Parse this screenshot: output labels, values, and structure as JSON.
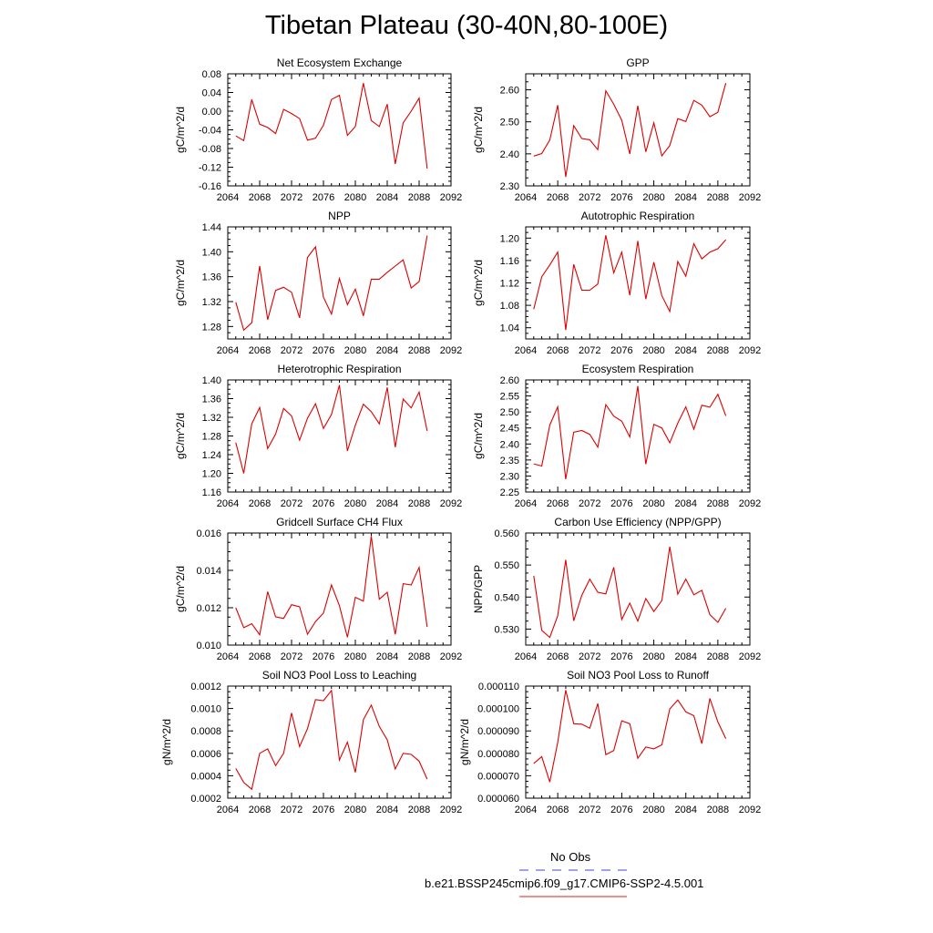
{
  "figure_title": "Tibetan Plateau (30-40N,80-100E)",
  "legend": {
    "obs_label": "No Obs",
    "obs_color": "#4444cc",
    "model_label": "b.e21.BSSP245cmip6.f09_g17.CMIP6-SSP2-4.5.001",
    "model_color": "#dd2222"
  },
  "line_color": "#dd0000",
  "chart_data": [
    {
      "type": "line",
      "title": "Net Ecosystem Exchange",
      "ylabel": "gC/m^2/d",
      "xlim": [
        2064,
        2092
      ],
      "ylim": [
        -0.16,
        0.08
      ],
      "xticks": [
        2064,
        2068,
        2072,
        2076,
        2080,
        2084,
        2088,
        2092
      ],
      "yticks": [
        -0.16,
        -0.12,
        -0.08,
        -0.04,
        0.0,
        0.04,
        0.08
      ],
      "ytick_labels": [
        "-0.16",
        "-0.12",
        "-0.08",
        "-0.04",
        "0.00",
        "0.04",
        "0.08"
      ],
      "x": [
        2065,
        2066,
        2067,
        2068,
        2069,
        2070,
        2071,
        2072,
        2073,
        2074,
        2075,
        2076,
        2077,
        2078,
        2079,
        2080,
        2081,
        2082,
        2083,
        2084,
        2085,
        2086,
        2087,
        2088,
        2089
      ],
      "y": [
        -0.053,
        -0.063,
        0.025,
        -0.028,
        -0.035,
        -0.048,
        0.004,
        -0.005,
        -0.016,
        -0.062,
        -0.058,
        -0.03,
        0.025,
        0.034,
        -0.052,
        -0.033,
        0.06,
        -0.02,
        -0.033,
        0.015,
        -0.113,
        -0.025,
        0.0,
        0.028,
        -0.123
      ]
    },
    {
      "type": "line",
      "title": "GPP",
      "ylabel": "gC/m^2/d",
      "xlim": [
        2064,
        2092
      ],
      "ylim": [
        2.3,
        2.65
      ],
      "xticks": [
        2064,
        2068,
        2072,
        2076,
        2080,
        2084,
        2088,
        2092
      ],
      "yticks": [
        2.3,
        2.4,
        2.5,
        2.6
      ],
      "ytick_labels": [
        "2.30",
        "2.40",
        "2.50",
        "2.60"
      ],
      "x": [
        2065,
        2066,
        2067,
        2068,
        2069,
        2070,
        2071,
        2072,
        2073,
        2074,
        2075,
        2076,
        2077,
        2078,
        2079,
        2080,
        2081,
        2082,
        2083,
        2084,
        2085,
        2086,
        2087,
        2088,
        2089
      ],
      "y": [
        2.393,
        2.401,
        2.443,
        2.552,
        2.328,
        2.488,
        2.448,
        2.444,
        2.413,
        2.597,
        2.555,
        2.505,
        2.4,
        2.55,
        2.406,
        2.497,
        2.394,
        2.426,
        2.51,
        2.501,
        2.567,
        2.552,
        2.516,
        2.53,
        2.621
      ]
    },
    {
      "type": "line",
      "title": "NPP",
      "ylabel": "gC/m^2/d",
      "xlim": [
        2064,
        2092
      ],
      "ylim": [
        1.26,
        1.44
      ],
      "xticks": [
        2064,
        2068,
        2072,
        2076,
        2080,
        2084,
        2088,
        2092
      ],
      "yticks": [
        1.28,
        1.32,
        1.36,
        1.4,
        1.44
      ],
      "ytick_labels": [
        "1.28",
        "1.32",
        "1.36",
        "1.40",
        "1.44"
      ],
      "x": [
        2065,
        2066,
        2067,
        2068,
        2069,
        2070,
        2071,
        2072,
        2073,
        2074,
        2075,
        2076,
        2077,
        2078,
        2079,
        2080,
        2081,
        2082,
        2083,
        2084,
        2085,
        2086,
        2087,
        2088,
        2089
      ],
      "y": [
        1.319,
        1.274,
        1.286,
        1.377,
        1.291,
        1.338,
        1.343,
        1.335,
        1.294,
        1.391,
        1.408,
        1.327,
        1.3,
        1.357,
        1.315,
        1.34,
        1.297,
        1.356,
        1.356,
        1.367,
        1.377,
        1.387,
        1.342,
        1.352,
        1.426
      ]
    },
    {
      "type": "line",
      "title": "Autotrophic Respiration",
      "ylabel": "gC/m^2/d",
      "xlim": [
        2064,
        2092
      ],
      "ylim": [
        1.02,
        1.22
      ],
      "xticks": [
        2064,
        2068,
        2072,
        2076,
        2080,
        2084,
        2088,
        2092
      ],
      "yticks": [
        1.04,
        1.08,
        1.12,
        1.16,
        1.2
      ],
      "ytick_labels": [
        "1.04",
        "1.08",
        "1.12",
        "1.16",
        "1.20"
      ],
      "x": [
        2065,
        2066,
        2067,
        2068,
        2069,
        2070,
        2071,
        2072,
        2073,
        2074,
        2075,
        2076,
        2077,
        2078,
        2079,
        2080,
        2081,
        2082,
        2083,
        2084,
        2085,
        2086,
        2087,
        2088,
        2089
      ],
      "y": [
        1.073,
        1.131,
        1.152,
        1.175,
        1.036,
        1.153,
        1.107,
        1.107,
        1.118,
        1.205,
        1.138,
        1.175,
        1.098,
        1.195,
        1.091,
        1.157,
        1.097,
        1.069,
        1.158,
        1.132,
        1.19,
        1.163,
        1.175,
        1.181,
        1.197
      ]
    },
    {
      "type": "line",
      "title": "Heterotrophic Respiration",
      "ylabel": "gC/m^2/d",
      "xlim": [
        2064,
        2092
      ],
      "ylim": [
        1.16,
        1.4
      ],
      "xticks": [
        2064,
        2068,
        2072,
        2076,
        2080,
        2084,
        2088,
        2092
      ],
      "yticks": [
        1.16,
        1.2,
        1.24,
        1.28,
        1.32,
        1.36,
        1.4
      ],
      "ytick_labels": [
        "1.16",
        "1.20",
        "1.24",
        "1.28",
        "1.32",
        "1.36",
        "1.40"
      ],
      "x": [
        2065,
        2066,
        2067,
        2068,
        2069,
        2070,
        2071,
        2072,
        2073,
        2074,
        2075,
        2076,
        2077,
        2078,
        2079,
        2080,
        2081,
        2082,
        2083,
        2084,
        2085,
        2086,
        2087,
        2088,
        2089
      ],
      "y": [
        1.266,
        1.2,
        1.306,
        1.341,
        1.253,
        1.284,
        1.339,
        1.323,
        1.271,
        1.318,
        1.349,
        1.296,
        1.326,
        1.389,
        1.248,
        1.303,
        1.348,
        1.332,
        1.306,
        1.384,
        1.256,
        1.359,
        1.34,
        1.374,
        1.291
      ]
    },
    {
      "type": "line",
      "title": "Ecosystem Respiration",
      "ylabel": "gC/m^2/d",
      "xlim": [
        2064,
        2092
      ],
      "ylim": [
        2.25,
        2.6
      ],
      "xticks": [
        2064,
        2068,
        2072,
        2076,
        2080,
        2084,
        2088,
        2092
      ],
      "yticks": [
        2.25,
        2.3,
        2.35,
        2.4,
        2.45,
        2.5,
        2.55,
        2.6
      ],
      "ytick_labels": [
        "2.25",
        "2.30",
        "2.35",
        "2.40",
        "2.45",
        "2.50",
        "2.55",
        "2.60"
      ],
      "x": [
        2065,
        2066,
        2067,
        2068,
        2069,
        2070,
        2071,
        2072,
        2073,
        2074,
        2075,
        2076,
        2077,
        2078,
        2079,
        2080,
        2081,
        2082,
        2083,
        2084,
        2085,
        2086,
        2087,
        2088,
        2089
      ],
      "y": [
        2.338,
        2.331,
        2.459,
        2.516,
        2.29,
        2.437,
        2.442,
        2.43,
        2.39,
        2.523,
        2.487,
        2.471,
        2.422,
        2.581,
        2.337,
        2.461,
        2.45,
        2.404,
        2.465,
        2.516,
        2.446,
        2.521,
        2.515,
        2.555,
        2.488
      ]
    },
    {
      "type": "line",
      "title": "Gridcell Surface CH4 Flux",
      "ylabel": "gC/m^2/d",
      "xlim": [
        2064,
        2092
      ],
      "ylim": [
        0.01,
        0.016
      ],
      "xticks": [
        2064,
        2068,
        2072,
        2076,
        2080,
        2084,
        2088,
        2092
      ],
      "yticks": [
        0.01,
        0.012,
        0.014,
        0.016
      ],
      "ytick_labels": [
        "0.010",
        "0.012",
        "0.014",
        "0.016"
      ],
      "x": [
        2065,
        2066,
        2067,
        2068,
        2069,
        2070,
        2071,
        2072,
        2073,
        2074,
        2075,
        2076,
        2077,
        2078,
        2079,
        2080,
        2081,
        2082,
        2083,
        2084,
        2085,
        2086,
        2087,
        2088,
        2089
      ],
      "y": [
        0.012,
        0.01093,
        0.01114,
        0.01055,
        0.01286,
        0.01151,
        0.01143,
        0.01216,
        0.01205,
        0.01058,
        0.01126,
        0.01171,
        0.01322,
        0.01211,
        0.01042,
        0.01256,
        0.01235,
        0.01584,
        0.01246,
        0.01283,
        0.01057,
        0.01329,
        0.01322,
        0.01416,
        0.01097
      ]
    },
    {
      "type": "line",
      "title": "Carbon Use Efficiency (NPP/GPP)",
      "ylabel": "NPP/GPP",
      "xlim": [
        2064,
        2092
      ],
      "ylim": [
        0.525,
        0.56
      ],
      "xticks": [
        2064,
        2068,
        2072,
        2076,
        2080,
        2084,
        2088,
        2092
      ],
      "yticks": [
        0.53,
        0.54,
        0.55,
        0.56
      ],
      "ytick_labels": [
        "0.530",
        "0.540",
        "0.550",
        "0.560"
      ],
      "x": [
        2065,
        2066,
        2067,
        2068,
        2069,
        2070,
        2071,
        2072,
        2073,
        2074,
        2075,
        2076,
        2077,
        2078,
        2079,
        2080,
        2081,
        2082,
        2083,
        2084,
        2085,
        2086,
        2087,
        2088,
        2089
      ],
      "y": [
        0.5466,
        0.5296,
        0.5274,
        0.5341,
        0.5516,
        0.5326,
        0.5405,
        0.5456,
        0.5415,
        0.541,
        0.5493,
        0.533,
        0.5381,
        0.5325,
        0.5395,
        0.5355,
        0.5389,
        0.5557,
        0.5409,
        0.5456,
        0.5407,
        0.5421,
        0.5345,
        0.5321,
        0.5365
      ]
    },
    {
      "type": "line",
      "title": "Soil NO3 Pool Loss to Leaching",
      "ylabel": "gN/m^2/d",
      "xlim": [
        2064,
        2092
      ],
      "ylim": [
        0.0002,
        0.0012
      ],
      "xticks": [
        2064,
        2068,
        2072,
        2076,
        2080,
        2084,
        2088,
        2092
      ],
      "yticks": [
        0.0002,
        0.0004,
        0.0006,
        0.0008,
        0.001,
        0.0012
      ],
      "ytick_labels": [
        "0.0002",
        "0.0004",
        "0.0006",
        "0.0008",
        "0.0010",
        "0.0012"
      ],
      "x": [
        2065,
        2066,
        2067,
        2068,
        2069,
        2070,
        2071,
        2072,
        2073,
        2074,
        2075,
        2076,
        2077,
        2078,
        2079,
        2080,
        2081,
        2082,
        2083,
        2084,
        2085,
        2086,
        2087,
        2088,
        2089
      ],
      "y": [
        0.000465,
        0.00034,
        0.00028,
        0.0006,
        0.00064,
        0.00049,
        0.0006,
        0.00096,
        0.00066,
        0.00082,
        0.00108,
        0.00107,
        0.00116,
        0.00054,
        0.0007,
        0.00043,
        0.0009,
        0.00103,
        0.00084,
        0.00072,
        0.00046,
        0.0006,
        0.00059,
        0.00053,
        0.00037
      ]
    },
    {
      "type": "line",
      "title": "Soil NO3 Pool Loss to Runoff",
      "ylabel": "gN/m^2/d",
      "xlim": [
        2064,
        2092
      ],
      "ylim": [
        6e-05,
        0.00011
      ],
      "xticks": [
        2064,
        2068,
        2072,
        2076,
        2080,
        2084,
        2088,
        2092
      ],
      "yticks": [
        6e-05,
        7e-05,
        8e-05,
        9e-05,
        0.0001,
        0.00011
      ],
      "ytick_labels": [
        "0.000060",
        "0.000070",
        "0.000080",
        "0.000090",
        "0.000100",
        "0.000110"
      ],
      "x": [
        2065,
        2066,
        2067,
        2068,
        2069,
        2070,
        2071,
        2072,
        2073,
        2074,
        2075,
        2076,
        2077,
        2078,
        2079,
        2080,
        2081,
        2082,
        2083,
        2084,
        2085,
        2086,
        2087,
        2088,
        2089
      ],
      "y": [
        7.55e-05,
        7.85e-05,
        6.72e-05,
        8.48e-05,
        0.0001082,
        9.32e-05,
        9.3e-05,
        9.12e-05,
        0.0001022,
        7.94e-05,
        8.12e-05,
        9.45e-05,
        9.32e-05,
        7.78e-05,
        8.28e-05,
        8.2e-05,
        8.38e-05,
        9.98e-05,
        0.0001038,
        9.85e-05,
        9.68e-05,
        8.43e-05,
        0.0001045,
        9.4e-05,
        8.66e-05
      ]
    }
  ]
}
